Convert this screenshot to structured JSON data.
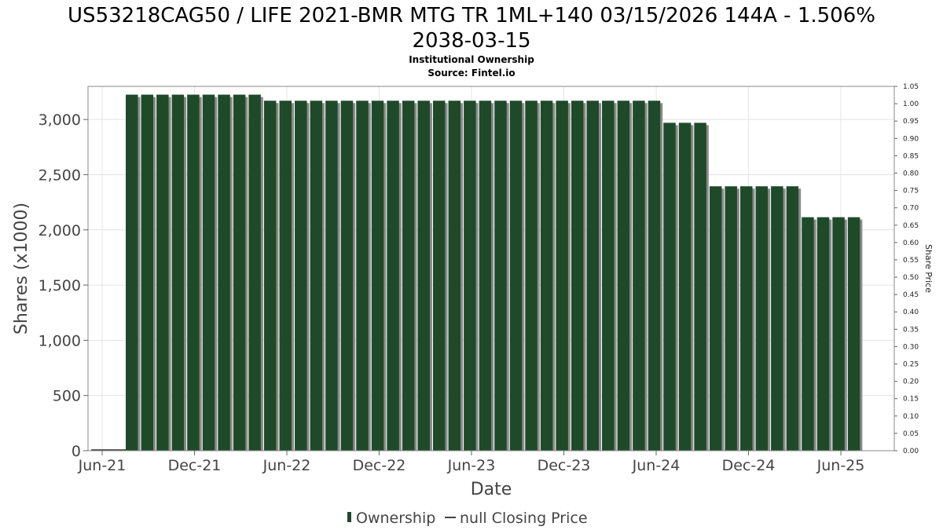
{
  "title_line1": "US53218CAG50 / LIFE 2021-BMR MTG TR 1ML+140 03/15/2026 144A - 1.506%",
  "title_line2": "2038-03-15",
  "subtitle_line1": "Institutional Ownership",
  "subtitle_line2": "Source: Fintel.io",
  "legend": {
    "ownership": "Ownership",
    "price": "null Closing Price"
  },
  "colors": {
    "bar": "#1f4a2a",
    "bar_shadow": "#8a8a8a",
    "grid": "#e4e4e4"
  },
  "chart_data": {
    "type": "bar",
    "xlabel": "Date",
    "ylabel": "Shares (x1000)",
    "y2label": "Share Price",
    "ylim": [
      0,
      3300
    ],
    "y_ticks": [
      0,
      500,
      1000,
      1500,
      2000,
      2500,
      3000
    ],
    "y_tick_labels": [
      "0",
      "500",
      "1,000",
      "1,500",
      "2,000",
      "2,500",
      "3,000"
    ],
    "y2lim": [
      0,
      1.05
    ],
    "y2_tick_labels": [
      "0.00",
      "0.05",
      "0.10",
      "0.15",
      "0.20",
      "0.25",
      "0.30",
      "0.35",
      "0.40",
      "0.45",
      "0.50",
      "0.55",
      "0.60",
      "0.65",
      "0.70",
      "0.75",
      "0.80",
      "0.85",
      "0.90",
      "0.95",
      "1.00",
      "1.05"
    ],
    "x_tick_labels": [
      "Jun-21",
      "Dec-21",
      "Jun-22",
      "Dec-22",
      "Jun-23",
      "Dec-23",
      "Jun-24",
      "Dec-24",
      "Jun-25"
    ],
    "x_start": "2021-05",
    "x_end": "2025-09",
    "grid": true,
    "legend_position": "bottom",
    "series": [
      {
        "name": "Ownership",
        "dates": [
          "2021-09",
          "2021-10",
          "2021-11",
          "2021-12",
          "2022-01",
          "2022-02",
          "2022-03",
          "2022-04",
          "2022-05",
          "2022-06",
          "2022-07",
          "2022-08",
          "2022-09",
          "2022-10",
          "2022-11",
          "2022-12",
          "2022-12",
          "2023-01",
          "2023-02",
          "2023-03",
          "2023-04",
          "2023-05",
          "2023-06",
          "2023-07",
          "2023-08",
          "2023-09",
          "2023-10",
          "2023-11",
          "2023-12",
          "2024-01",
          "2024-02",
          "2024-03",
          "2024-04",
          "2024-05",
          "2024-06",
          "2024-07",
          "2024-08",
          "2024-09",
          "2024-10",
          "2024-11",
          "2024-12",
          "2025-01",
          "2025-02",
          "2025-03",
          "2025-04",
          "2025-05",
          "2025-06",
          "2025-07"
        ],
        "values": [
          3225,
          3225,
          3225,
          3225,
          3225,
          3225,
          3225,
          3225,
          3225,
          3170,
          3170,
          3170,
          3170,
          3170,
          3170,
          3170,
          3170,
          3170,
          3170,
          3170,
          3170,
          3170,
          3170,
          3170,
          3170,
          3170,
          3170,
          3170,
          3170,
          3170,
          3170,
          3170,
          3170,
          3170,
          3170,
          2970,
          2970,
          2970,
          2395,
          2395,
          2395,
          2395,
          2395,
          2395,
          2115,
          2115,
          2115,
          2115
        ]
      }
    ]
  }
}
